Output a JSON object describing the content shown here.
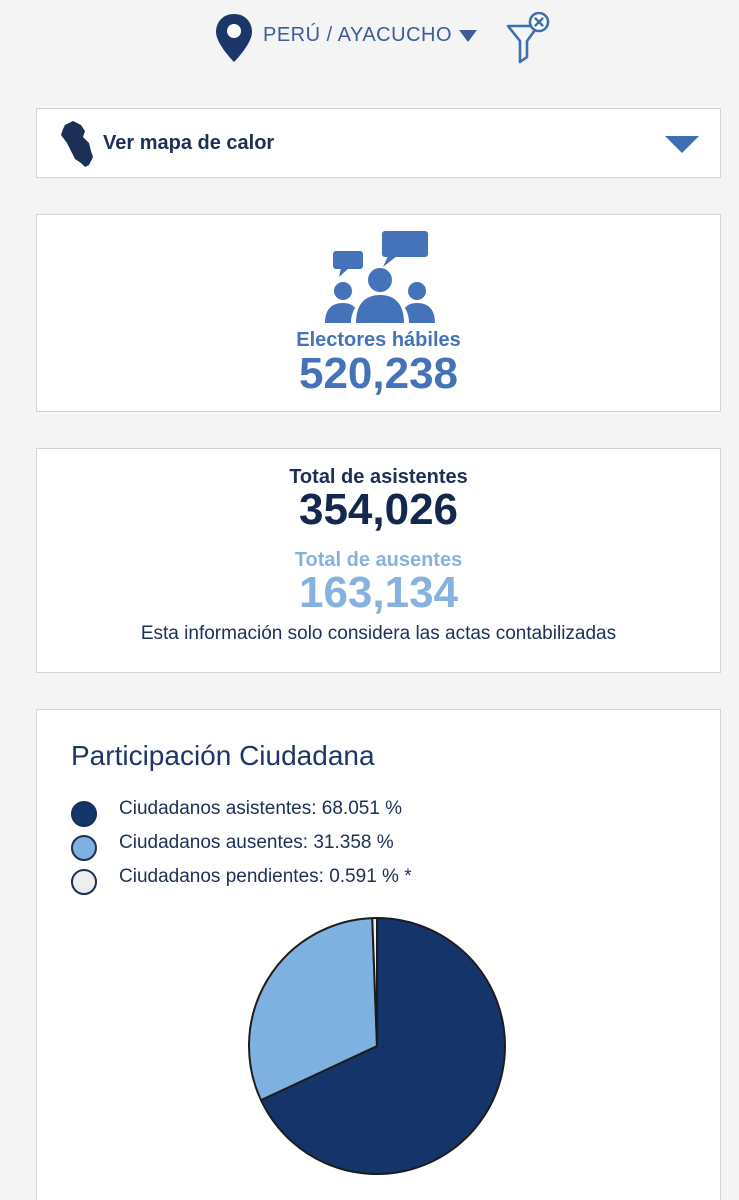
{
  "header": {
    "location": "PERÚ / AYACUCHO",
    "icons": {
      "location": "map-pin-icon",
      "dropdown": "caret-down-icon",
      "filter": "filter-clear-icon"
    }
  },
  "heatmap": {
    "label": "Ver mapa de calor",
    "icons": {
      "map": "peru-map-icon",
      "toggle": "caret-down-icon"
    }
  },
  "electores": {
    "label": "Electores hábiles",
    "value": "520,238",
    "icon": "people-chat-icon"
  },
  "asistencia": {
    "asistentes_label": "Total de asistentes",
    "asistentes_value": "354,026",
    "ausentes_label": "Total de ausentes",
    "ausentes_value": "163,134",
    "note": "Esta información solo considera las actas contabilizadas"
  },
  "participacion": {
    "title": "Participación Ciudadana",
    "legend": [
      {
        "label": "Ciudadanos asistentes: 68.051 %",
        "color": "#15356a"
      },
      {
        "label": "Ciudadanos ausentes: 31.358 %",
        "color": "#7eb0e0"
      },
      {
        "label": "Ciudadanos pendientes: 0.591 % *",
        "color": "#eeeeee"
      }
    ]
  },
  "chart_data": {
    "type": "pie",
    "categories": [
      "Ciudadanos asistentes",
      "Ciudadanos ausentes",
      "Ciudadanos pendientes"
    ],
    "values": [
      68.051,
      31.358,
      0.591
    ],
    "colors": [
      "#15356a",
      "#7eb0e0",
      "#eeeeee"
    ],
    "title": "Participación Ciudadana",
    "legend": "top-left"
  }
}
